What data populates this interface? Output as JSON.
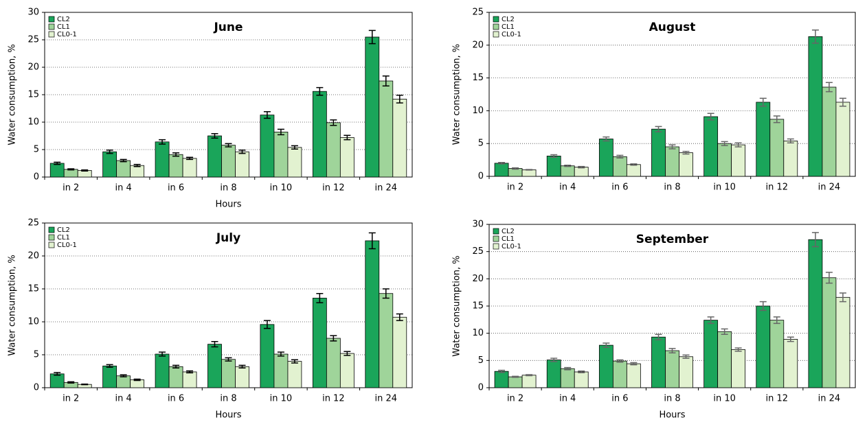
{
  "chart_data": [
    {
      "type": "bar",
      "title": "June",
      "xlabel": "Hours",
      "ylabel": "Water consumption, %",
      "categories": [
        "in 2",
        "in 4",
        "in 6",
        "in 8",
        "in 10",
        "in 12",
        "in 24"
      ],
      "series": [
        {
          "name": "CL2",
          "color": "#1aa55a",
          "values": [
            2.5,
            4.6,
            6.4,
            7.5,
            11.3,
            15.6,
            25.5
          ],
          "errors": [
            0.2,
            0.3,
            0.4,
            0.4,
            0.6,
            0.7,
            1.2
          ]
        },
        {
          "name": "CL1",
          "color": "#9fd49a",
          "values": [
            1.4,
            3.0,
            4.1,
            5.8,
            8.2,
            9.9,
            17.5
          ],
          "errors": [
            0.1,
            0.2,
            0.3,
            0.3,
            0.5,
            0.5,
            0.9
          ]
        },
        {
          "name": "CL0-1",
          "color": "#e2f2d0",
          "values": [
            1.2,
            2.1,
            3.4,
            4.6,
            5.4,
            7.2,
            14.2
          ],
          "errors": [
            0.1,
            0.2,
            0.2,
            0.3,
            0.3,
            0.4,
            0.7
          ]
        }
      ],
      "ylim": [
        0,
        30
      ],
      "yticks": [
        0,
        5,
        10,
        15,
        20,
        25,
        30
      ],
      "grid": true,
      "legend": "upper left",
      "error_color": "#000000"
    },
    {
      "type": "bar",
      "title": "August",
      "ylabel": "Water consumption, %",
      "categories": [
        "in 2",
        "in 4",
        "in 6",
        "in 8",
        "in 10",
        "in 12",
        "in 24"
      ],
      "series": [
        {
          "name": "CL2",
          "color": "#1aa55a",
          "values": [
            2.0,
            3.1,
            5.7,
            7.2,
            9.1,
            11.3,
            21.3
          ],
          "errors": [
            0.1,
            0.2,
            0.3,
            0.4,
            0.5,
            0.6,
            1.0
          ]
        },
        {
          "name": "CL1",
          "color": "#9fd49a",
          "values": [
            1.2,
            1.6,
            3.0,
            4.5,
            5.0,
            8.7,
            13.6
          ],
          "errors": [
            0.1,
            0.1,
            0.2,
            0.3,
            0.3,
            0.5,
            0.7
          ]
        },
        {
          "name": "CL0-1",
          "color": "#e2f2d0",
          "values": [
            1.0,
            1.4,
            1.8,
            3.6,
            4.8,
            5.4,
            11.3
          ],
          "errors": [
            0.05,
            0.1,
            0.1,
            0.2,
            0.3,
            0.3,
            0.6
          ]
        }
      ],
      "ylim": [
        0,
        25
      ],
      "yticks": [
        0,
        5,
        10,
        15,
        20,
        25
      ],
      "grid": true,
      "legend": "upper left",
      "error_color": "#666666"
    },
    {
      "type": "bar",
      "title": "July",
      "xlabel": "Hours",
      "ylabel": "Water consumption, %",
      "categories": [
        "in 2",
        "in 4",
        "in 6",
        "in 8",
        "in 10",
        "in 12",
        "in 24"
      ],
      "series": [
        {
          "name": "CL2",
          "color": "#1aa55a",
          "values": [
            2.1,
            3.3,
            5.1,
            6.6,
            9.6,
            13.6,
            22.3
          ],
          "errors": [
            0.2,
            0.2,
            0.3,
            0.4,
            0.6,
            0.7,
            1.2
          ]
        },
        {
          "name": "CL1",
          "color": "#9fd49a",
          "values": [
            0.8,
            1.8,
            3.2,
            4.3,
            5.1,
            7.5,
            14.3
          ],
          "errors": [
            0.1,
            0.15,
            0.2,
            0.25,
            0.3,
            0.4,
            0.7
          ]
        },
        {
          "name": "CL0-1",
          "color": "#e2f2d0",
          "values": [
            0.5,
            1.2,
            2.4,
            3.2,
            4.0,
            5.2,
            10.7
          ],
          "errors": [
            0.05,
            0.1,
            0.15,
            0.2,
            0.25,
            0.3,
            0.5
          ]
        }
      ],
      "ylim": [
        0,
        25
      ],
      "yticks": [
        0,
        5,
        10,
        15,
        20,
        25
      ],
      "grid": true,
      "legend": "upper left",
      "error_color": "#000000"
    },
    {
      "type": "bar",
      "title": "September",
      "xlabel": "Hours",
      "ylabel": "Water consumption, %",
      "categories": [
        "in 2",
        "in 4",
        "in 6",
        "in 8",
        "in 10",
        "in 12",
        "in 24"
      ],
      "series": [
        {
          "name": "CL2",
          "color": "#1aa55a",
          "values": [
            3.0,
            5.1,
            7.8,
            9.3,
            12.4,
            15.0,
            27.2
          ],
          "errors": [
            0.2,
            0.3,
            0.4,
            0.5,
            0.6,
            0.8,
            1.3
          ]
        },
        {
          "name": "CL1",
          "color": "#9fd49a",
          "values": [
            2.0,
            3.5,
            4.9,
            6.8,
            10.3,
            12.4,
            20.2
          ],
          "errors": [
            0.1,
            0.2,
            0.2,
            0.4,
            0.5,
            0.6,
            1.0
          ]
        },
        {
          "name": "CL0-1",
          "color": "#e2f2d0",
          "values": [
            2.3,
            2.9,
            4.4,
            5.7,
            7.0,
            8.9,
            16.6
          ],
          "errors": [
            0.1,
            0.15,
            0.2,
            0.3,
            0.3,
            0.4,
            0.8
          ]
        }
      ],
      "ylim": [
        0,
        30
      ],
      "yticks": [
        0,
        5,
        10,
        15,
        20,
        25,
        30
      ],
      "grid": true,
      "legend": "upper left",
      "error_color": "#666666"
    }
  ]
}
